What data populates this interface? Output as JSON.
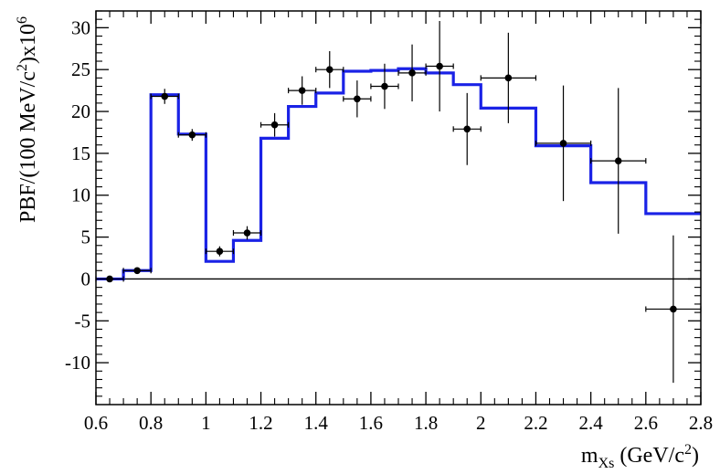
{
  "chart_data": {
    "type": "scatter",
    "title": "",
    "xlabel": "m_Xs (GeV/c²)",
    "xlabel_parts": {
      "main": "m",
      "sub": "Xs",
      "unit_pre": " (GeV/c",
      "unit_sup": "2",
      "unit_post": ")"
    },
    "ylabel": "PBF/(100 MeV/c²)x10⁶",
    "ylabel_parts": {
      "pre": "PBF/(100 MeV/c",
      "sup1": "2",
      "mid": ")x10",
      "sup2": "6"
    },
    "xlim": [
      0.6,
      2.8
    ],
    "ylim": [
      -15,
      32
    ],
    "x_ticks": [
      0.6,
      0.8,
      1.0,
      1.2,
      1.4,
      1.6,
      1.8,
      2.0,
      2.2,
      2.4,
      2.6,
      2.8
    ],
    "x_tick_labels": [
      "0.6",
      "0.8",
      "1",
      "1.2",
      "1.4",
      "1.6",
      "1.8",
      "2",
      "2.2",
      "2.4",
      "2.6",
      "2.8"
    ],
    "y_ticks": [
      -10,
      -5,
      0,
      5,
      10,
      15,
      20,
      25,
      30
    ],
    "y_tick_labels": [
      "-10",
      "-5",
      "0",
      "5",
      "10",
      "15",
      "20",
      "25",
      "30"
    ],
    "legend": "none",
    "grid": false,
    "reference_line_y": 0,
    "series": [
      {
        "type": "scatter",
        "color": "#000000",
        "points": [
          {
            "x": 0.65,
            "y": 0.0,
            "xerr": 0.05,
            "yerr": 0.0
          },
          {
            "x": 0.75,
            "y": 1.0,
            "xerr": 0.05,
            "yerr": 0.3
          },
          {
            "x": 0.85,
            "y": 21.8,
            "xerr": 0.05,
            "yerr": 0.9
          },
          {
            "x": 0.95,
            "y": 17.2,
            "xerr": 0.05,
            "yerr": 0.7
          },
          {
            "x": 1.05,
            "y": 3.3,
            "xerr": 0.05,
            "yerr": 0.6
          },
          {
            "x": 1.15,
            "y": 5.5,
            "xerr": 0.05,
            "yerr": 0.8
          },
          {
            "x": 1.25,
            "y": 18.4,
            "xerr": 0.05,
            "yerr": 1.4
          },
          {
            "x": 1.35,
            "y": 22.5,
            "xerr": 0.05,
            "yerr": 1.7
          },
          {
            "x": 1.45,
            "y": 25.0,
            "xerr": 0.05,
            "yerr": 2.2
          },
          {
            "x": 1.55,
            "y": 21.5,
            "xerr": 0.05,
            "yerr": 2.2
          },
          {
            "x": 1.65,
            "y": 23.0,
            "xerr": 0.05,
            "yerr": 2.7
          },
          {
            "x": 1.75,
            "y": 24.6,
            "xerr": 0.05,
            "yerr": 3.4
          },
          {
            "x": 1.85,
            "y": 25.4,
            "xerr": 0.05,
            "yerr": 5.4
          },
          {
            "x": 1.95,
            "y": 17.9,
            "xerr": 0.05,
            "yerr": 4.3
          },
          {
            "x": 2.1,
            "y": 24.0,
            "xerr": 0.1,
            "yerr": 5.4
          },
          {
            "x": 2.3,
            "y": 16.2,
            "xerr": 0.1,
            "yerr": 6.9
          },
          {
            "x": 2.5,
            "y": 14.1,
            "xerr": 0.1,
            "yerr": 8.7
          },
          {
            "x": 2.7,
            "y": -3.6,
            "xerr": 0.1,
            "yerr": 8.8
          }
        ]
      },
      {
        "type": "step",
        "color": "#1a22e6",
        "bin_edges": [
          0.6,
          0.7,
          0.8,
          0.9,
          1.0,
          1.1,
          1.2,
          1.3,
          1.4,
          1.5,
          1.6,
          1.7,
          1.8,
          1.9,
          2.0,
          2.2,
          2.4,
          2.6,
          2.8
        ],
        "values": [
          0.0,
          1.0,
          22.0,
          17.3,
          2.1,
          4.6,
          16.8,
          20.6,
          22.2,
          24.8,
          24.9,
          25.1,
          24.6,
          23.2,
          20.4,
          15.9,
          11.5,
          7.8
        ]
      }
    ]
  }
}
